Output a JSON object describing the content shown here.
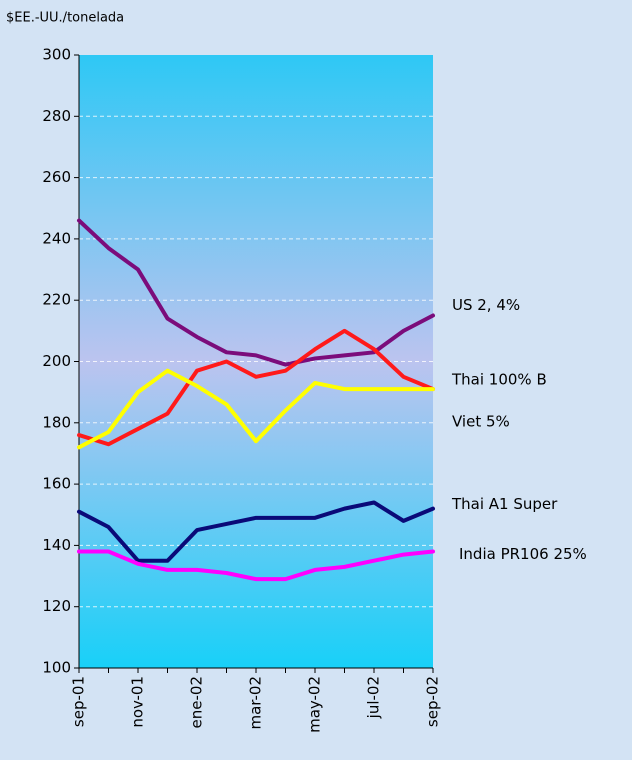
{
  "chart_data": {
    "type": "line",
    "y_label": "$EE.-UU./tonelada",
    "categories": [
      "sep-01",
      null,
      "nov-01",
      null,
      "ene-02",
      null,
      "mar-02",
      null,
      "may-02",
      null,
      "jul-02",
      null,
      "sep-02"
    ],
    "ylim": [
      100,
      300
    ],
    "yticks": [
      100,
      120,
      140,
      160,
      180,
      200,
      220,
      240,
      260,
      280,
      300
    ],
    "grid": true,
    "series": [
      {
        "name": "US 2, 4%",
        "color": "#7b0c7b",
        "values": [
          246,
          237,
          230,
          214,
          208,
          203,
          202,
          199,
          201,
          202,
          203,
          210,
          215
        ]
      },
      {
        "name": "Thai 100% B",
        "color": "#ff1a1a",
        "values": [
          176,
          173,
          178,
          183,
          197,
          200,
          195,
          197,
          204,
          210,
          204,
          195,
          191
        ]
      },
      {
        "name": "Viet 5%",
        "color": "#ffff00",
        "values": [
          172,
          177,
          190,
          197,
          192,
          186,
          174,
          184,
          193,
          191,
          191,
          191,
          191
        ]
      },
      {
        "name": "Thai A1 Super",
        "color": "#0a0a78",
        "values": [
          151,
          146,
          135,
          135,
          145,
          147,
          149,
          149,
          149,
          152,
          154,
          148,
          152
        ]
      },
      {
        "name": "India PR106 25%",
        "color": "#ff00ff",
        "values": [
          138,
          138,
          134,
          132,
          132,
          131,
          129,
          129,
          132,
          133,
          135,
          137,
          138
        ]
      }
    ]
  }
}
